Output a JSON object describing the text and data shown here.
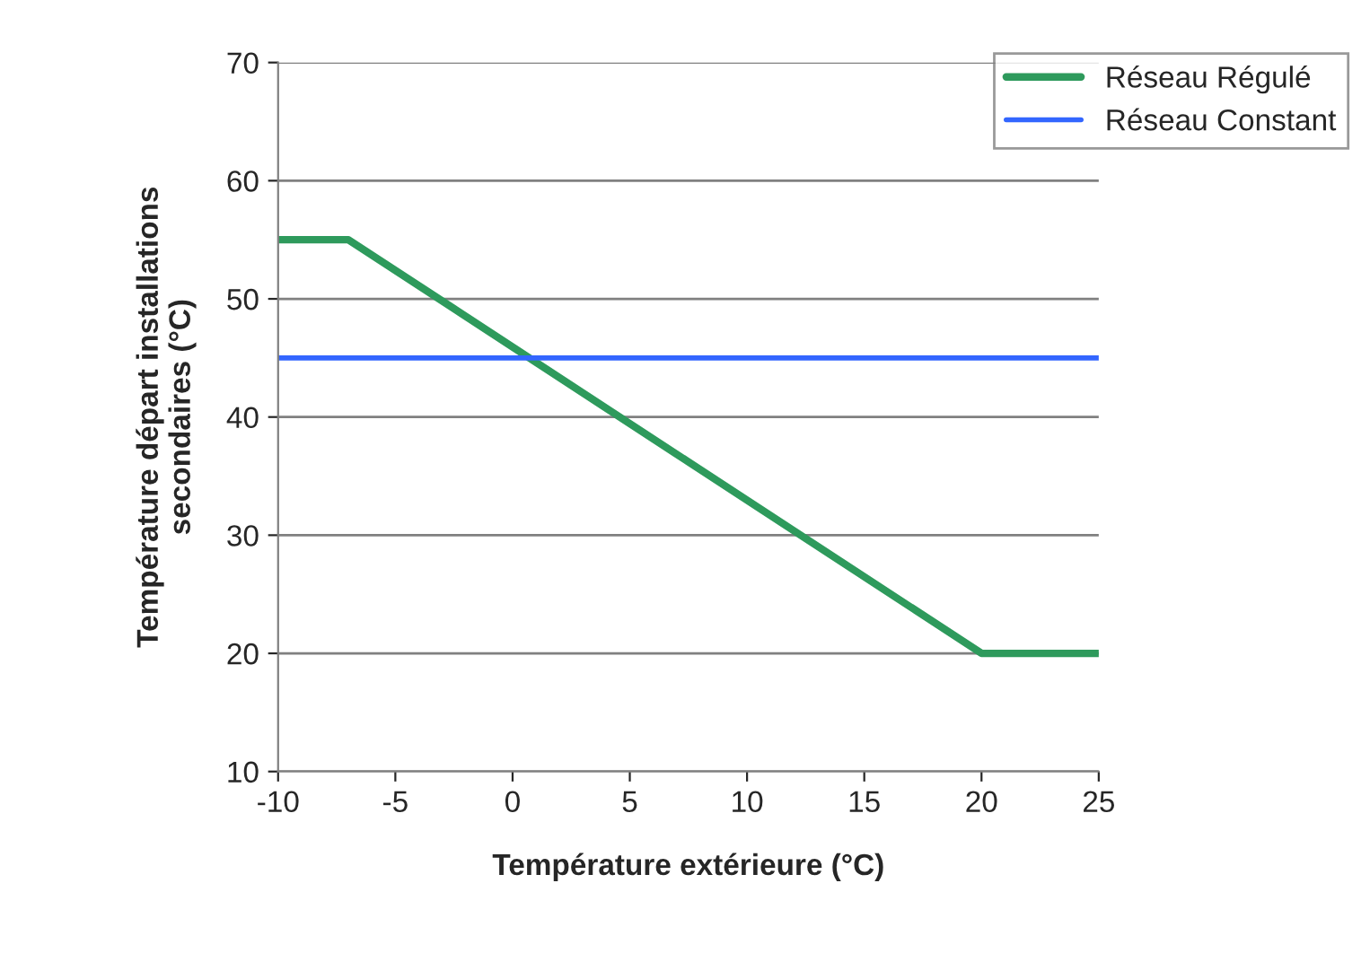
{
  "chart_data": {
    "type": "line",
    "xlabel": "Température extérieure (°C)",
    "ylabel": "Température départ installations\nsecondaires (°C)",
    "xlim": [
      -10,
      25
    ],
    "xticks": [
      -10,
      -5,
      0,
      5,
      10,
      15,
      20,
      25
    ],
    "ylim": [
      10,
      70
    ],
    "yticks": [
      10,
      20,
      30,
      40,
      50,
      60,
      70
    ],
    "grid": "y",
    "legend": "top right",
    "marker": "none",
    "line_style": "solid",
    "series": [
      {
        "name": "Réseau Régulé",
        "color": "#2e9a5c",
        "x": [
          -10,
          -7,
          20,
          25
        ],
        "values": [
          55,
          55,
          20,
          20
        ]
      },
      {
        "name": "Réseau Constant",
        "color": "#3366ff",
        "x": [
          -10,
          25
        ],
        "values": [
          45,
          45
        ]
      }
    ]
  }
}
